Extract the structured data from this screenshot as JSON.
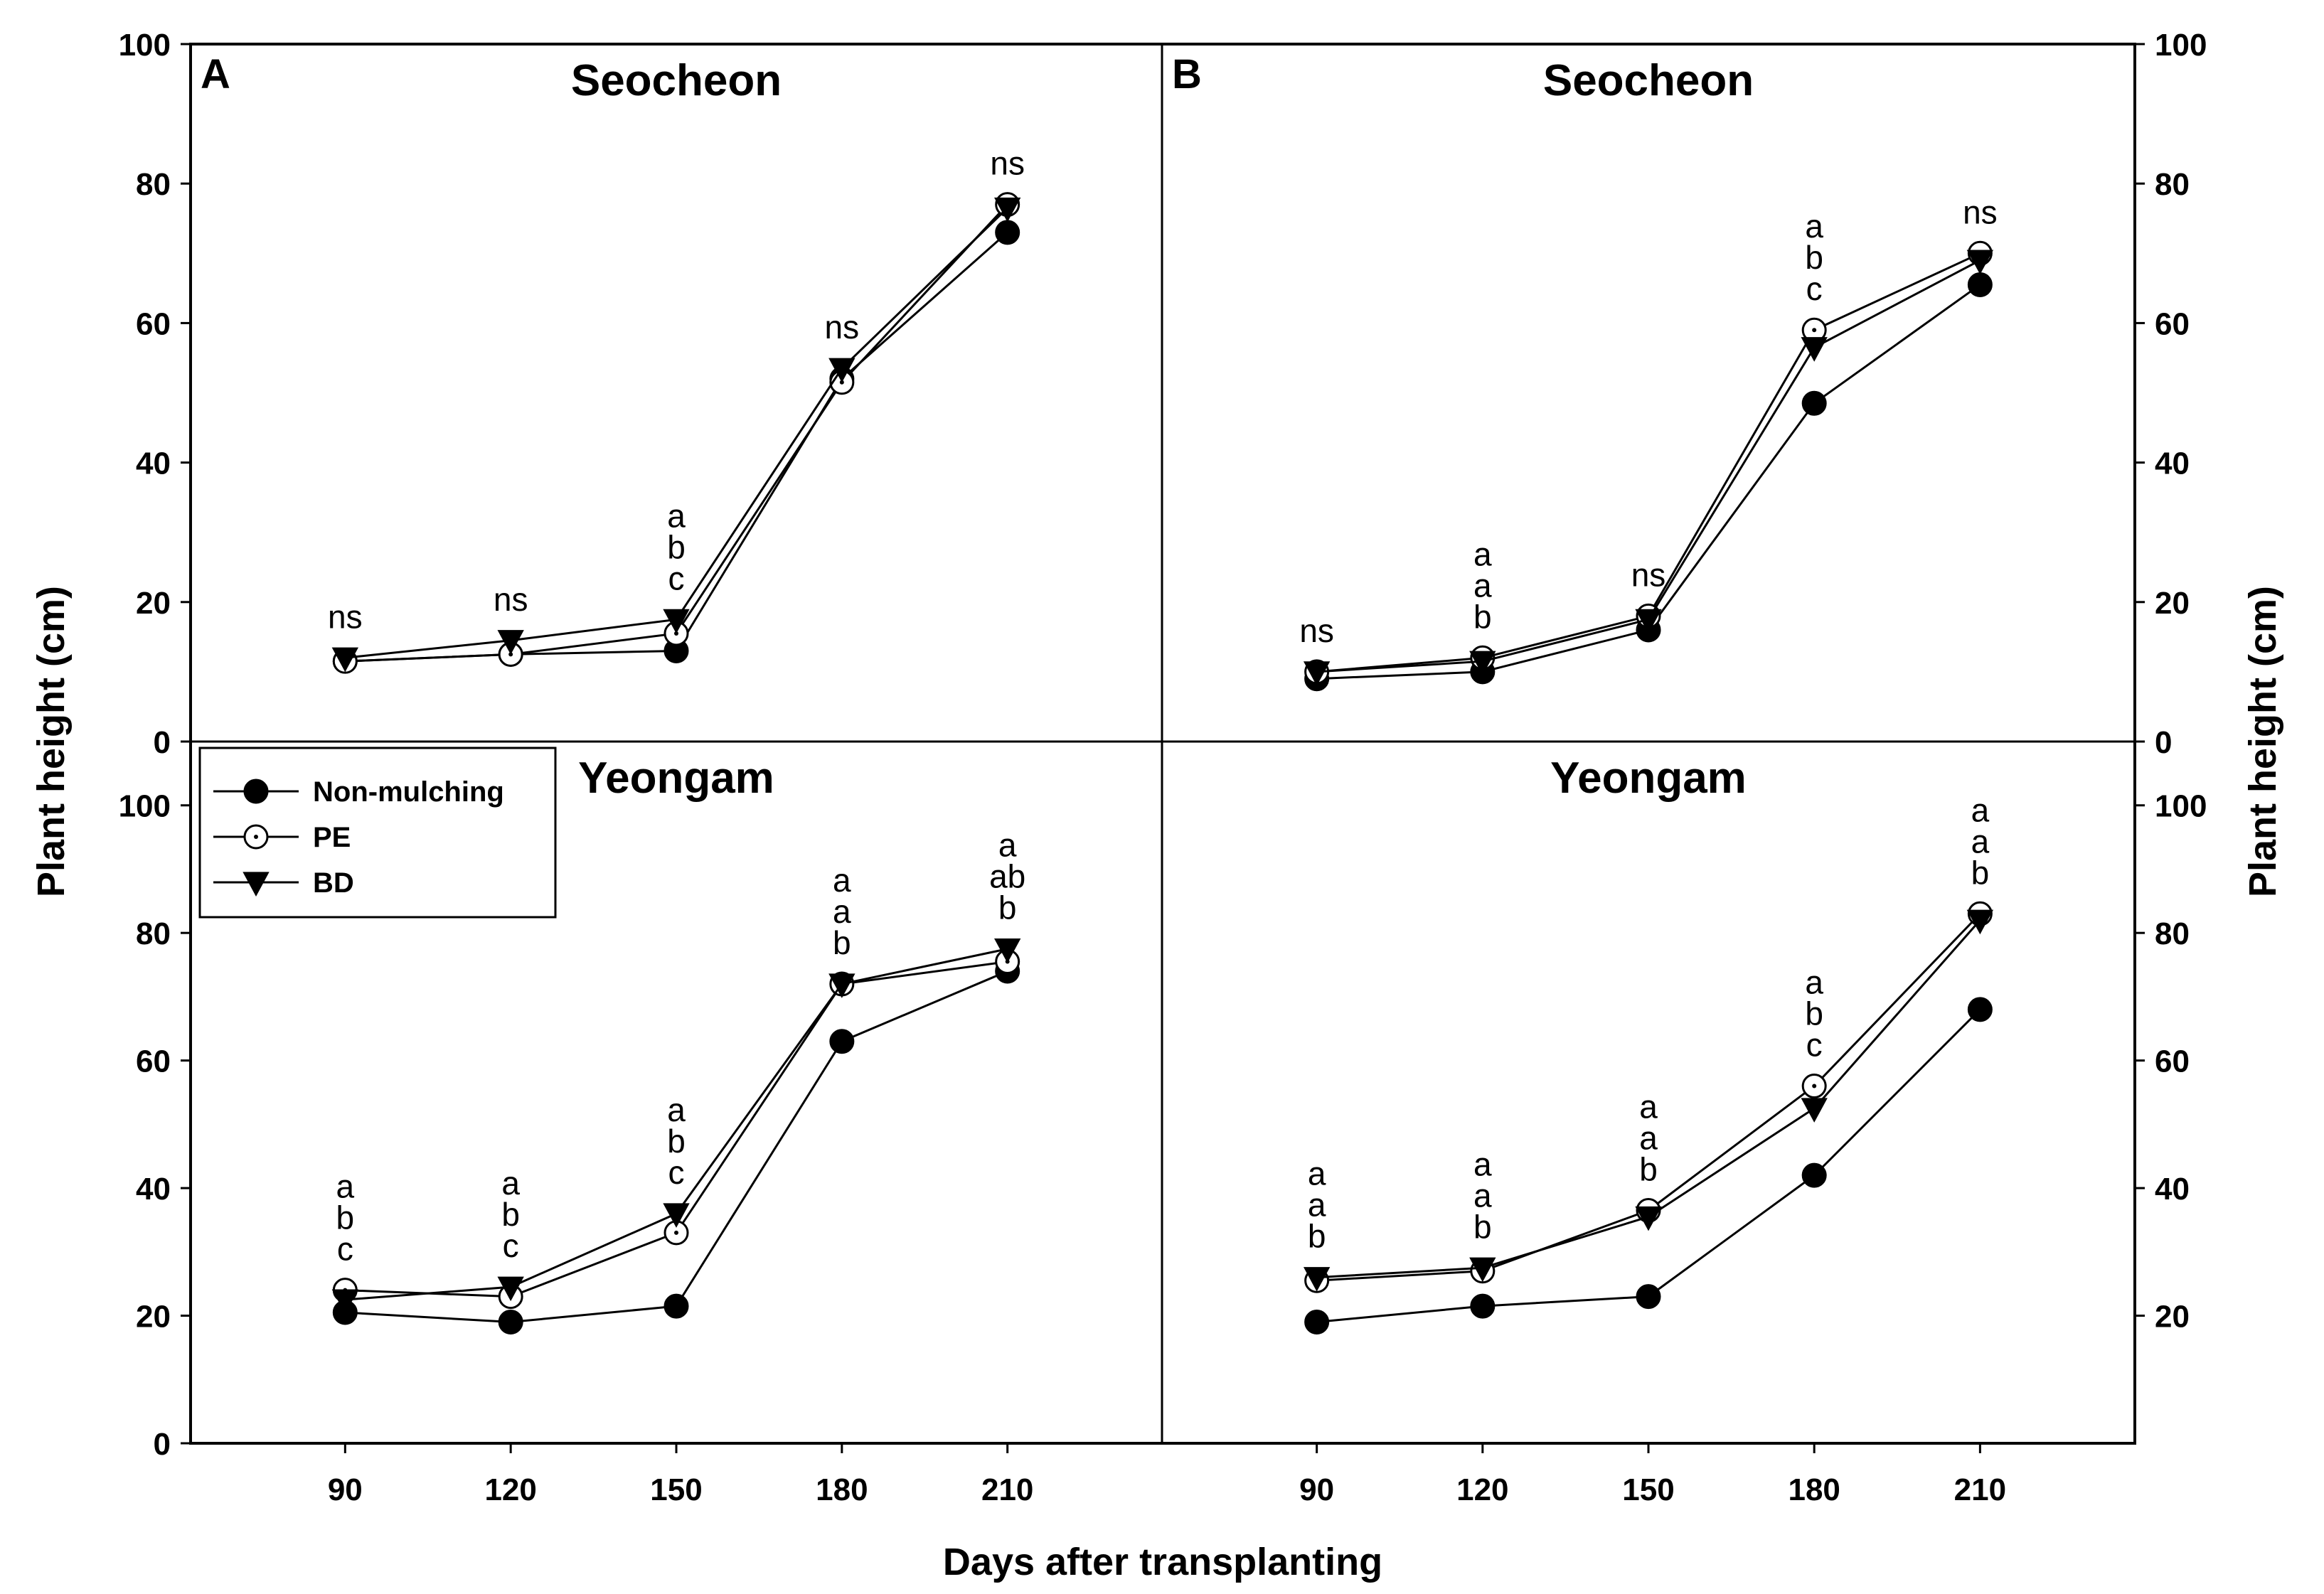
{
  "chart_data": {
    "type": "line",
    "xlabel": "Days after transplanting",
    "ylabel_left": "Plant height (cm)",
    "ylabel_right": "Plant height (cm)",
    "x": [
      90,
      120,
      150,
      180,
      210
    ],
    "xlim": [
      62,
      238
    ],
    "legend": {
      "position": "top-left of lower-left panel",
      "entries": [
        {
          "name": "Non-mulching",
          "marker": "filled-circle"
        },
        {
          "name": "PE",
          "marker": "open-circle"
        },
        {
          "name": "BD",
          "marker": "filled-triangle-down"
        }
      ]
    },
    "panels": [
      {
        "id": "A-top",
        "letter": "A",
        "title": "Seocheon",
        "ylim": [
          0,
          100
        ],
        "yticks": [
          0,
          20,
          40,
          60,
          80,
          100
        ],
        "series": [
          {
            "name": "Non-mulching",
            "values": [
              11.5,
              12.5,
              13,
              52,
              73
            ]
          },
          {
            "name": "PE",
            "values": [
              11.5,
              12.5,
              15.5,
              51.5,
              77
            ]
          },
          {
            "name": "BD",
            "values": [
              12,
              14.5,
              17.5,
              53.5,
              76.5
            ]
          }
        ],
        "annotations": [
          {
            "x": 90,
            "lines": [
              "ns"
            ]
          },
          {
            "x": 120,
            "lines": [
              "ns"
            ]
          },
          {
            "x": 150,
            "lines": [
              "a",
              "b",
              "c"
            ]
          },
          {
            "x": 180,
            "lines": [
              "ns"
            ]
          },
          {
            "x": 210,
            "lines": [
              "ns"
            ]
          }
        ]
      },
      {
        "id": "B-top",
        "letter": "B",
        "title": "Seocheon",
        "ylim": [
          0,
          100
        ],
        "yticks": [
          0,
          20,
          40,
          60,
          80,
          100
        ],
        "series": [
          {
            "name": "Non-mulching",
            "values": [
              9,
              10,
              16,
              48.5,
              65.5
            ]
          },
          {
            "name": "PE",
            "values": [
              10,
              12,
              18,
              59,
              70
            ]
          },
          {
            "name": "BD",
            "values": [
              10,
              11.5,
              17.5,
              56.5,
              69
            ]
          }
        ],
        "annotations": [
          {
            "x": 90,
            "lines": [
              "ns"
            ]
          },
          {
            "x": 120,
            "lines": [
              "a",
              "a",
              "b"
            ]
          },
          {
            "x": 150,
            "lines": [
              "ns"
            ]
          },
          {
            "x": 180,
            "lines": [
              "a",
              "b",
              "c"
            ]
          },
          {
            "x": 210,
            "lines": [
              "ns"
            ]
          }
        ]
      },
      {
        "id": "A-bottom",
        "letter": "",
        "title": "Yeongam",
        "ylim": [
          0,
          110
        ],
        "yticks": [
          0,
          20,
          40,
          60,
          80,
          100
        ],
        "series": [
          {
            "name": "Non-mulching",
            "values": [
              20.5,
              19,
              21.5,
              63,
              74
            ]
          },
          {
            "name": "PE",
            "values": [
              24,
              23,
              33,
              72,
              75.5
            ]
          },
          {
            "name": "BD",
            "values": [
              22.5,
              24.5,
              36,
              72,
              77.5
            ]
          }
        ],
        "annotations": [
          {
            "x": 90,
            "lines": [
              "a",
              "b",
              "c"
            ]
          },
          {
            "x": 120,
            "lines": [
              "a",
              "b",
              "c"
            ]
          },
          {
            "x": 150,
            "lines": [
              "a",
              "b",
              "c"
            ]
          },
          {
            "x": 180,
            "lines": [
              "a",
              "a",
              "b"
            ]
          },
          {
            "x": 210,
            "lines": [
              "a",
              "ab",
              "b"
            ]
          }
        ]
      },
      {
        "id": "B-bottom",
        "letter": "",
        "title": "Yeongam",
        "ylim": [
          0,
          110
        ],
        "yticks": [
          20,
          40,
          60,
          80,
          100
        ],
        "series": [
          {
            "name": "Non-mulching",
            "values": [
              19,
              21.5,
              23,
              42,
              68
            ]
          },
          {
            "name": "PE",
            "values": [
              25.5,
              27,
              36.5,
              56,
              83
            ]
          },
          {
            "name": "BD",
            "values": [
              26,
              27.5,
              35.5,
              52.5,
              82
            ]
          }
        ],
        "annotations": [
          {
            "x": 90,
            "lines": [
              "a",
              "a",
              "b"
            ]
          },
          {
            "x": 120,
            "lines": [
              "a",
              "a",
              "b"
            ]
          },
          {
            "x": 150,
            "lines": [
              "a",
              "a",
              "b"
            ]
          },
          {
            "x": 180,
            "lines": [
              "a",
              "b",
              "c"
            ]
          },
          {
            "x": 210,
            "lines": [
              "a",
              "a",
              "b"
            ]
          }
        ]
      }
    ]
  }
}
